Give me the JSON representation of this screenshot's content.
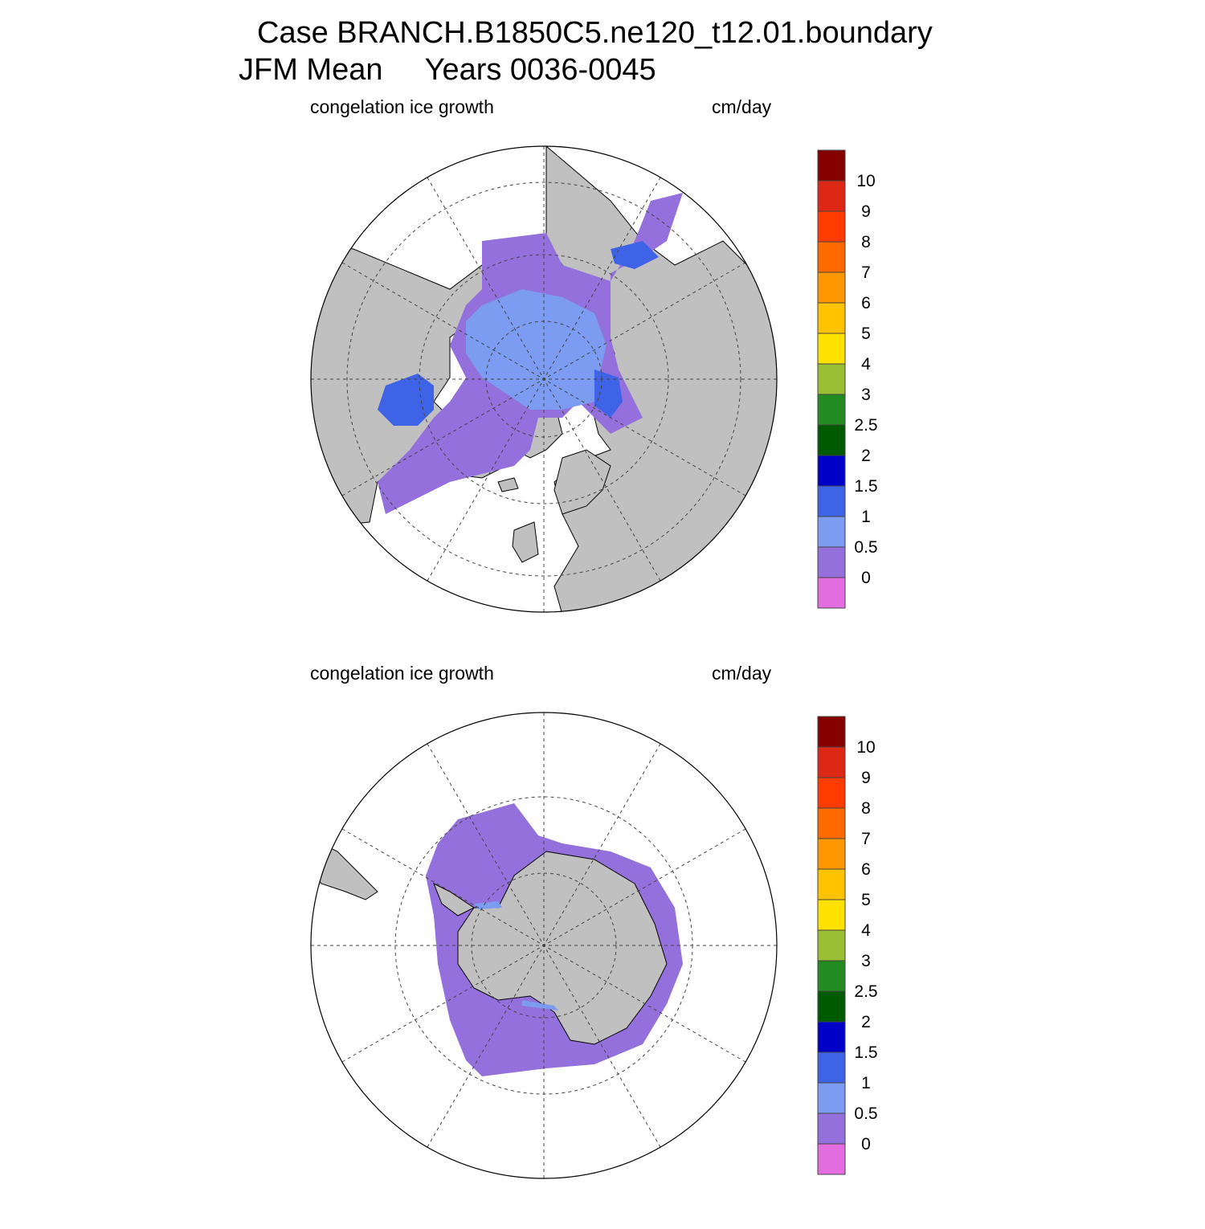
{
  "title": {
    "line1": "Case BRANCH.B1850C5.ne120_t12.01.boundary",
    "line2": "JFM Mean     Years 0036-0045"
  },
  "panels": [
    {
      "left_label": "congelation ice growth",
      "right_label": "cm/day",
      "hemisphere": "north"
    },
    {
      "left_label": "congelation ice growth",
      "right_label": "cm/day",
      "hemisphere": "south"
    }
  ],
  "colorbar": {
    "levels": [
      "0",
      "0.5",
      "1",
      "1.5",
      "2",
      "2.5",
      "3",
      "4",
      "5",
      "6",
      "7",
      "8",
      "9",
      "10"
    ],
    "colors": [
      "#e36ee0",
      "#9370db",
      "#7b9cf0",
      "#3f63e6",
      "#0000c8",
      "#005a00",
      "#228b22",
      "#9abf34",
      "#ffe100",
      "#ffc300",
      "#ff9800",
      "#ff6a00",
      "#ff3c00",
      "#dc2814",
      "#870000"
    ]
  },
  "colors": {
    "land": "#c0c0c0",
    "ocean": "#ffffff",
    "ice_main": "#7b9cf0",
    "ice_edge": "#9370db",
    "ice_thick": "#3f63e6"
  }
}
